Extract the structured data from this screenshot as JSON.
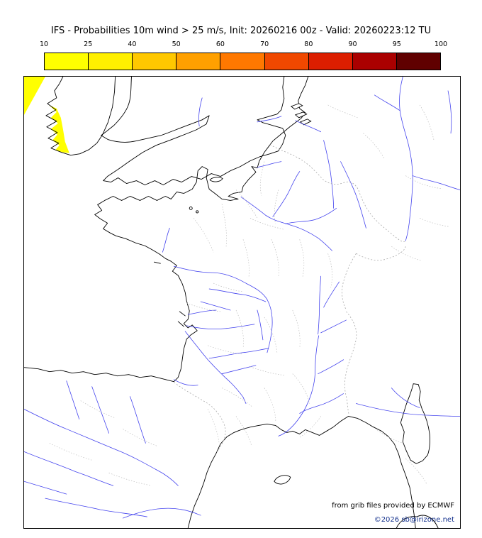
{
  "title": "IFS - Probabilities 10m wind > 25 m/s, Init: 20260216 00z - Valid: 20260223:12 TU",
  "colorbar": {
    "labels": [
      "10",
      "25",
      "40",
      "50",
      "60",
      "70",
      "80",
      "90",
      "95",
      "100"
    ],
    "colors": [
      "#ffff00",
      "#ffef00",
      "#ffc800",
      "#ffa000",
      "#ff7800",
      "#f04800",
      "#dc1e00",
      "#aa0000",
      "#600000"
    ]
  },
  "credits": {
    "provider": "from grib files provided by ECMWF",
    "copyright": "©2026 sb@irizone.net"
  },
  "theme": {
    "coast": "#000000",
    "river": "#4444ee",
    "boundary": "#a8a8a8",
    "boundary_light": "#bdbdbd",
    "probability_fill": "#ffff00",
    "frame": "#000000",
    "credit_color": "#16338e",
    "title_color": "#000000"
  }
}
